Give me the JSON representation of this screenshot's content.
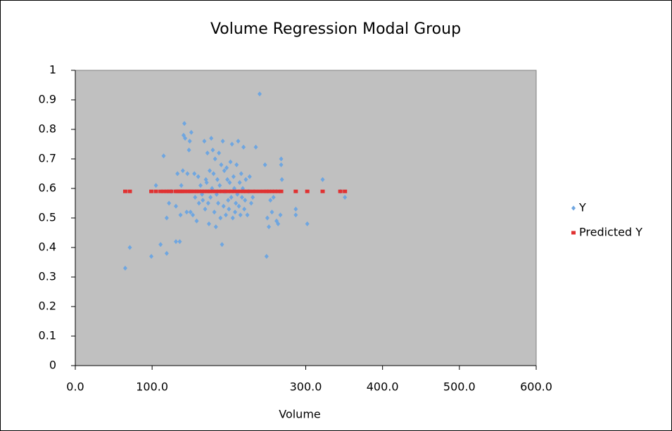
{
  "chart_data": {
    "type": "scatter",
    "title": "Volume Regression Modal Group",
    "x_label": "Volume",
    "xlim": [
      0,
      600
    ],
    "xticks": [
      {
        "value": 0,
        "label": "0.0"
      },
      {
        "value": 100,
        "label": "100.0"
      },
      {
        "value": 300,
        "label": "300.0"
      },
      {
        "value": 400,
        "label": "400.0"
      },
      {
        "value": 500,
        "label": "500.0"
      },
      {
        "value": 600,
        "label": "600.0"
      }
    ],
    "ylim": [
      0,
      1
    ],
    "yticks": [
      0,
      0.1,
      0.2,
      0.3,
      0.4,
      0.5,
      0.6,
      0.7,
      0.8,
      0.9,
      1
    ],
    "legend": "right",
    "series": [
      {
        "name": "Y",
        "color": "#6fa6e0",
        "marker": "diamond",
        "x": [
          65,
          71,
          99,
          105,
          111,
          115,
          119,
          119,
          122,
          125,
          131,
          131,
          133,
          136,
          137,
          138,
          140,
          141,
          142,
          143,
          145,
          146,
          148,
          149,
          150,
          151,
          153,
          155,
          156,
          158,
          160,
          161,
          163,
          165,
          166,
          168,
          169,
          170,
          171,
          172,
          173,
          174,
          175,
          176,
          177,
          178,
          179,
          180,
          181,
          182,
          183,
          184,
          185,
          186,
          187,
          188,
          189,
          190,
          191,
          192,
          193,
          194,
          195,
          196,
          197,
          198,
          199,
          200,
          201,
          202,
          203,
          204,
          205,
          206,
          207,
          208,
          209,
          210,
          211,
          212,
          213,
          214,
          215,
          216,
          217,
          218,
          219,
          220,
          221,
          222,
          224,
          226,
          227,
          229,
          231,
          235,
          240,
          247,
          249,
          250,
          252,
          254,
          256,
          258,
          262,
          264,
          267,
          268,
          268,
          269,
          287,
          287,
          302,
          322,
          345,
          351
        ],
        "values": [
          0.33,
          0.4,
          0.37,
          0.61,
          0.41,
          0.71,
          0.38,
          0.5,
          0.55,
          0.59,
          0.42,
          0.54,
          0.65,
          0.42,
          0.51,
          0.61,
          0.66,
          0.78,
          0.82,
          0.77,
          0.52,
          0.65,
          0.73,
          0.76,
          0.52,
          0.79,
          0.51,
          0.65,
          0.57,
          0.49,
          0.64,
          0.55,
          0.61,
          0.58,
          0.56,
          0.76,
          0.53,
          0.63,
          0.62,
          0.72,
          0.55,
          0.48,
          0.66,
          0.57,
          0.77,
          0.6,
          0.73,
          0.65,
          0.52,
          0.7,
          0.47,
          0.58,
          0.63,
          0.55,
          0.72,
          0.61,
          0.5,
          0.68,
          0.41,
          0.76,
          0.54,
          0.66,
          0.59,
          0.51,
          0.67,
          0.63,
          0.56,
          0.53,
          0.62,
          0.69,
          0.57,
          0.75,
          0.5,
          0.64,
          0.6,
          0.52,
          0.55,
          0.68,
          0.58,
          0.76,
          0.54,
          0.62,
          0.51,
          0.65,
          0.57,
          0.6,
          0.74,
          0.53,
          0.56,
          0.63,
          0.51,
          0.59,
          0.64,
          0.55,
          0.57,
          0.74,
          0.92,
          0.68,
          0.37,
          0.5,
          0.47,
          0.56,
          0.52,
          0.57,
          0.49,
          0.48,
          0.51,
          0.7,
          0.68,
          0.63,
          0.53,
          0.51,
          0.48,
          0.63,
          0.59,
          0.57
        ]
      },
      {
        "name": "Predicted Y",
        "color": "#e03232",
        "marker": "square",
        "x": [
          65,
          71,
          99,
          105,
          111,
          115,
          119,
          122,
          125,
          131,
          133,
          136,
          138,
          140,
          143,
          146,
          149,
          151,
          155,
          158,
          161,
          165,
          168,
          172,
          175,
          179,
          183,
          187,
          191,
          195,
          199,
          203,
          207,
          211,
          215,
          219,
          222,
          226,
          231,
          235,
          240,
          245,
          249,
          252,
          256,
          260,
          264,
          268,
          287,
          302,
          322,
          345,
          351
        ],
        "values": [
          0.59,
          0.59,
          0.59,
          0.59,
          0.59,
          0.59,
          0.59,
          0.59,
          0.59,
          0.59,
          0.59,
          0.59,
          0.59,
          0.59,
          0.59,
          0.59,
          0.59,
          0.59,
          0.59,
          0.59,
          0.59,
          0.59,
          0.59,
          0.59,
          0.59,
          0.59,
          0.59,
          0.59,
          0.59,
          0.59,
          0.59,
          0.59,
          0.59,
          0.59,
          0.59,
          0.59,
          0.59,
          0.59,
          0.59,
          0.59,
          0.59,
          0.59,
          0.59,
          0.59,
          0.59,
          0.59,
          0.59,
          0.59,
          0.59,
          0.59,
          0.59,
          0.59,
          0.59
        ]
      }
    ]
  }
}
